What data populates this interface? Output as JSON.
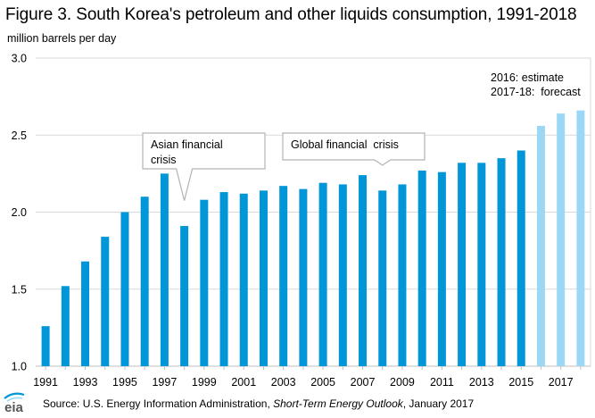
{
  "title": "Figure 3. South Korea's petroleum and other liquids consumption, 1991-2018",
  "unit_label": "million barrels per day",
  "source": {
    "prefix": "Source: U.S. Energy Information Administration, ",
    "publication": "Short-Term Energy Outlook",
    "suffix": ", January 2017"
  },
  "logo_text": "eia",
  "colors": {
    "actual": "#0096d7",
    "projection": "#9bd8f6",
    "grid": "#d9d9d9",
    "axis": "#bfbfbf",
    "callout_border": "#b3b3b3"
  },
  "chart_data": {
    "type": "bar",
    "ylim": [
      1.0,
      3.0
    ],
    "yticks": [
      "1.0",
      "1.5",
      "2.0",
      "2.5",
      "3.0"
    ],
    "ytick_values": [
      1.0,
      1.5,
      2.0,
      2.5,
      3.0
    ],
    "categories": [
      "1991",
      "1992",
      "1993",
      "1994",
      "1995",
      "1996",
      "1997",
      "1998",
      "1999",
      "2000",
      "2001",
      "2002",
      "2003",
      "2004",
      "2005",
      "2006",
      "2007",
      "2008",
      "2009",
      "2010",
      "2011",
      "2012",
      "2013",
      "2014",
      "2015",
      "2016",
      "2017",
      "2018"
    ],
    "xtick_labels": [
      "1991",
      "1993",
      "1995",
      "1997",
      "1999",
      "2001",
      "2003",
      "2005",
      "2007",
      "2009",
      "2011",
      "2013",
      "2015",
      "2017"
    ],
    "values": [
      1.26,
      1.52,
      1.68,
      1.84,
      2.0,
      2.1,
      2.25,
      1.91,
      2.08,
      2.13,
      2.12,
      2.14,
      2.17,
      2.15,
      2.19,
      2.18,
      2.24,
      2.14,
      2.18,
      2.27,
      2.26,
      2.32,
      2.32,
      2.35,
      2.4,
      2.56,
      2.64,
      2.66
    ],
    "projection_start": "2016",
    "grid": true,
    "annotations": [
      {
        "category": "1998",
        "lines": [
          "Asian financial",
          "crisis"
        ]
      },
      {
        "category": "2008",
        "lines": [
          "Global financial  crisis"
        ]
      }
    ],
    "legend_note": [
      "2016: estimate",
      "2017-18:  forecast"
    ]
  }
}
